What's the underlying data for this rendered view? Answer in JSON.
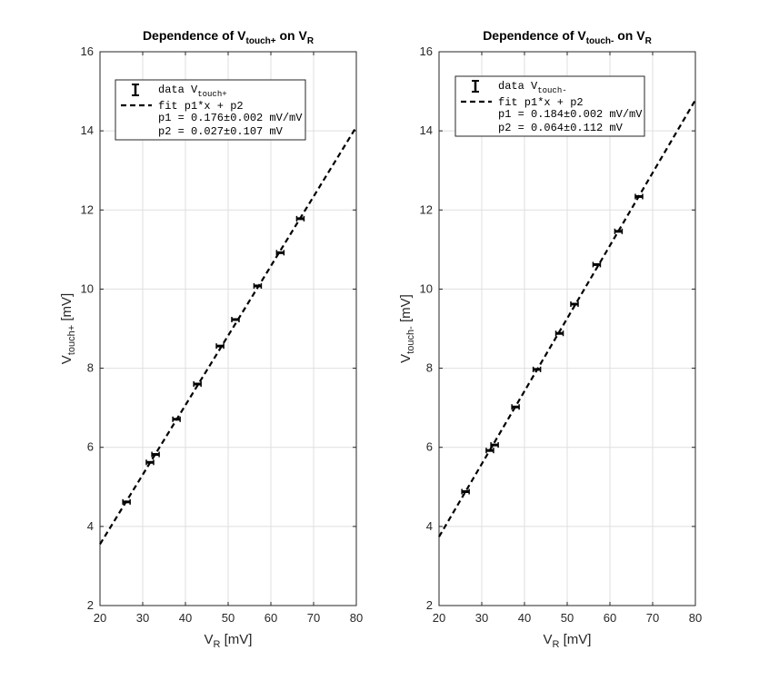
{
  "chart_data": [
    {
      "type": "scatter",
      "title": {
        "main": "Dependence of V",
        "main_sub": "touch+",
        "mid": " on V",
        "end_sub": "R"
      },
      "xlabel": {
        "main": "V",
        "sub": "R",
        "rest": " [mV]"
      },
      "ylabel": {
        "main": "V",
        "sub": "touch+",
        "rest": " [mV]"
      },
      "xlim": [
        20,
        80
      ],
      "ylim": [
        2,
        16
      ],
      "xticks": [
        "20",
        "30",
        "40",
        "50",
        "60",
        "70",
        "80"
      ],
      "yticks": [
        "2",
        "4",
        "6",
        "8",
        "10",
        "12",
        "14",
        "16"
      ],
      "grid": true,
      "legend_position": "top-left",
      "legend": {
        "data_label": "data V",
        "data_label_sub": "touch+",
        "fit_label": "fit p1*x + p2",
        "p1_line": "p1 = 0.176±0.002 mV/mV",
        "p2_line": "p2 = 0.027±0.107 mV"
      },
      "series": [
        {
          "kind": "data",
          "x": [
            26.2,
            31.7,
            33.0,
            37.9,
            42.8,
            48.1,
            51.7,
            56.9,
            62.2,
            66.9
          ],
          "y": [
            4.62,
            5.62,
            5.82,
            6.71,
            7.6,
            8.56,
            9.23,
            10.08,
            10.92,
            11.78
          ]
        },
        {
          "kind": "fit",
          "x": [
            20,
            80
          ],
          "y": [
            3.55,
            14.1
          ]
        }
      ]
    },
    {
      "type": "scatter",
      "title": {
        "main": "Dependence of V",
        "main_sub": "touch-",
        "mid": " on V",
        "end_sub": "R"
      },
      "xlabel": {
        "main": "V",
        "sub": "R",
        "rest": " [mV]"
      },
      "ylabel": {
        "main": "V",
        "sub": "touch-",
        "rest": " [mV]"
      },
      "xlim": [
        20,
        80
      ],
      "ylim": [
        2,
        16
      ],
      "xticks": [
        "20",
        "30",
        "40",
        "50",
        "60",
        "70",
        "80"
      ],
      "yticks": [
        "2",
        "4",
        "6",
        "8",
        "10",
        "12",
        "14",
        "16"
      ],
      "grid": true,
      "legend_position": "top-left",
      "legend": {
        "data_label": "data V",
        "data_label_sub": "touch-",
        "fit_label": "fit p1*x + p2",
        "p1_line": "p1 = 0.184±0.002 mV/mV",
        "p2_line": "p2 = 0.064±0.112 mV"
      },
      "series": [
        {
          "kind": "data",
          "x": [
            26.2,
            31.9,
            33.0,
            37.9,
            42.9,
            48.2,
            51.7,
            56.9,
            62.0,
            66.8
          ],
          "y": [
            4.88,
            5.92,
            6.06,
            7.02,
            7.97,
            8.88,
            9.62,
            10.62,
            11.46,
            12.34
          ]
        },
        {
          "kind": "fit",
          "x": [
            20,
            80
          ],
          "y": [
            3.74,
            14.78
          ]
        }
      ]
    }
  ]
}
